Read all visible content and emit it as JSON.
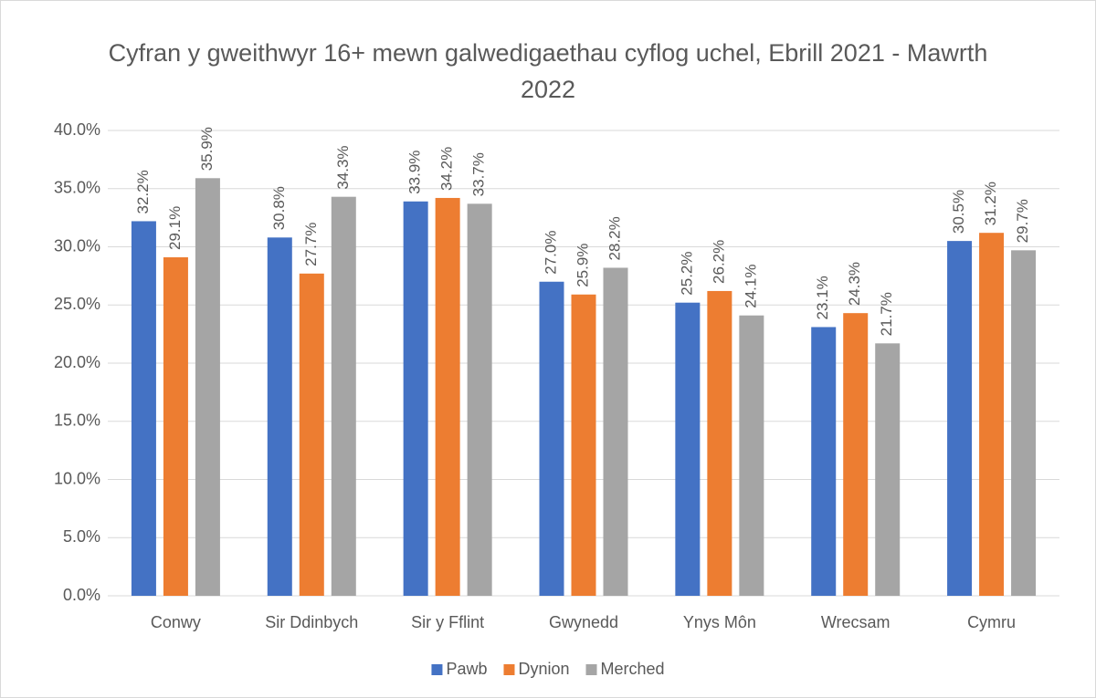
{
  "chart_data": {
    "type": "bar",
    "title": "Cyfran y gweithwyr 16+ mewn galwedigaethau cyflog uchel, Ebrill 2021 - Mawrth 2022",
    "categories": [
      "Conwy",
      "Sir Ddinbych",
      "Sir y Fflint",
      "Gwynedd",
      "Ynys Môn",
      "Wrecsam",
      "Cymru"
    ],
    "series": [
      {
        "name": "Pawb",
        "color": "#4472c4",
        "values": [
          32.2,
          30.8,
          33.9,
          27.0,
          25.2,
          23.1,
          30.5
        ],
        "value_labels": [
          "32.2%",
          "30.8%",
          "33.9%",
          "27.0%",
          "25.2%",
          "23.1%",
          "30.5%"
        ]
      },
      {
        "name": "Dynion",
        "color": "#ed7d31",
        "values": [
          29.1,
          27.7,
          34.2,
          25.9,
          26.2,
          24.3,
          31.2
        ],
        "value_labels": [
          "29.1%",
          "27.7%",
          "34.2%",
          "25.9%",
          "26.2%",
          "24.3%",
          "31.2%"
        ]
      },
      {
        "name": "Merched",
        "color": "#a5a5a5",
        "values": [
          35.9,
          34.3,
          33.7,
          28.2,
          24.1,
          21.7,
          29.7
        ],
        "value_labels": [
          "35.9%",
          "34.3%",
          "33.7%",
          "28.2%",
          "24.1%",
          "21.7%",
          "29.7%"
        ]
      }
    ],
    "ylim": [
      0,
      40
    ],
    "yticks": [
      {
        "value": 0,
        "label": "0.0%"
      },
      {
        "value": 5,
        "label": "5.0%"
      },
      {
        "value": 10,
        "label": "10.0%"
      },
      {
        "value": 15,
        "label": "15.0%"
      },
      {
        "value": 20,
        "label": "20.0%"
      },
      {
        "value": 25,
        "label": "25.0%"
      },
      {
        "value": 30,
        "label": "30.0%"
      },
      {
        "value": 35,
        "label": "35.0%"
      },
      {
        "value": 40,
        "label": "40.0%"
      }
    ],
    "grid": true,
    "legend": "bottom"
  }
}
